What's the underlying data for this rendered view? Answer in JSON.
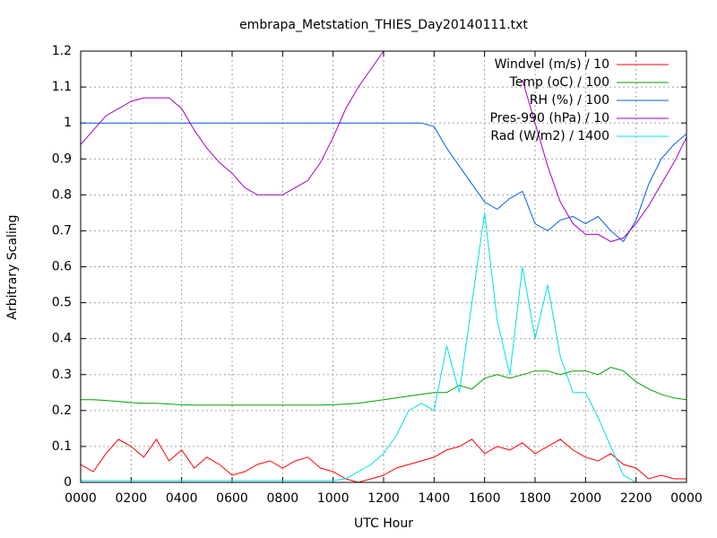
{
  "chart_data": {
    "type": "line",
    "title": "embrapa_Metstation_THIES_Day20140111.txt",
    "x_label": "UTC Hour",
    "y_label": "Arbitrary Scaling",
    "xlim": [
      0,
      24
    ],
    "ylim": [
      0,
      1.2
    ],
    "xticks": [
      {
        "value": 0,
        "label": "0000"
      },
      {
        "value": 2,
        "label": "0200"
      },
      {
        "value": 4,
        "label": "0400"
      },
      {
        "value": 6,
        "label": "0600"
      },
      {
        "value": 8,
        "label": "0800"
      },
      {
        "value": 10,
        "label": "1000"
      },
      {
        "value": 12,
        "label": "1200"
      },
      {
        "value": 14,
        "label": "1400"
      },
      {
        "value": 16,
        "label": "1600"
      },
      {
        "value": 18,
        "label": "1800"
      },
      {
        "value": 20,
        "label": "2000"
      },
      {
        "value": 22,
        "label": "2200"
      },
      {
        "value": 24,
        "label": "0000"
      }
    ],
    "yticks": [
      {
        "value": 0,
        "label": "0"
      },
      0.1,
      0.2,
      0.3,
      0.4,
      0.5,
      0.6,
      0.7,
      0.8,
      0.9,
      {
        "value": 1,
        "label": "1"
      },
      1.1,
      1.2
    ],
    "grid": true,
    "legend": "top-right",
    "x": [
      0,
      0.5,
      1,
      1.5,
      2,
      2.5,
      3,
      3.5,
      4,
      4.5,
      5,
      5.5,
      6,
      6.5,
      7,
      7.5,
      8,
      8.5,
      9,
      9.5,
      10,
      10.5,
      11,
      11.5,
      12,
      12.5,
      13,
      13.5,
      14,
      14.5,
      15,
      15.5,
      16,
      16.5,
      17,
      17.5,
      18,
      18.5,
      19,
      19.5,
      20,
      20.5,
      21,
      21.5,
      22,
      22.5,
      23,
      23.5,
      24
    ],
    "series": [
      {
        "name": "Windvel (m/s) / 10",
        "color": "#ff0000",
        "values": [
          0.05,
          0.03,
          0.08,
          0.12,
          0.1,
          0.07,
          0.12,
          0.06,
          0.09,
          0.04,
          0.07,
          0.05,
          0.02,
          0.03,
          0.05,
          0.06,
          0.04,
          0.06,
          0.07,
          0.04,
          0.03,
          0.01,
          0,
          0.01,
          0.02,
          0.04,
          0.05,
          0.06,
          0.07,
          0.09,
          0.1,
          0.12,
          0.08,
          0.1,
          0.09,
          0.11,
          0.08,
          0.1,
          0.12,
          0.09,
          0.07,
          0.06,
          0.08,
          0.05,
          0.04,
          0.01,
          0.02,
          0.01,
          0.01
        ]
      },
      {
        "name": "Temp (oC) / 100",
        "color": "#00a000",
        "values": [
          0.23,
          0.23,
          0.228,
          0.225,
          0.222,
          0.22,
          0.22,
          0.218,
          0.216,
          0.215,
          0.215,
          0.215,
          0.215,
          0.215,
          0.215,
          0.215,
          0.215,
          0.215,
          0.215,
          0.215,
          0.216,
          0.218,
          0.22,
          0.225,
          0.23,
          0.235,
          0.24,
          0.245,
          0.25,
          0.25,
          0.27,
          0.26,
          0.29,
          0.3,
          0.29,
          0.3,
          0.31,
          0.31,
          0.3,
          0.31,
          0.31,
          0.3,
          0.32,
          0.31,
          0.28,
          0.26,
          0.245,
          0.235,
          0.23
        ]
      },
      {
        "name": "RH (%) / 100",
        "color": "#0060e0",
        "values": [
          1,
          1,
          1,
          1,
          1,
          1,
          1,
          1,
          1,
          1,
          1,
          1,
          1,
          1,
          1,
          1,
          1,
          1,
          1,
          1,
          1,
          1,
          1,
          1,
          1,
          1,
          1,
          1,
          0.99,
          0.93,
          0.88,
          0.83,
          0.78,
          0.76,
          0.79,
          0.81,
          0.72,
          0.7,
          0.73,
          0.74,
          0.72,
          0.74,
          0.7,
          0.67,
          0.73,
          0.83,
          0.9,
          0.94,
          0.97
        ]
      },
      {
        "name": "Pres-990 (hPa) / 10",
        "color": "#a000c0",
        "values": [
          0.94,
          0.98,
          1.02,
          1.04,
          1.06,
          1.07,
          1.07,
          1.07,
          1.04,
          0.98,
          0.93,
          0.89,
          0.86,
          0.82,
          0.8,
          0.8,
          0.8,
          0.82,
          0.84,
          0.89,
          0.96,
          1.04,
          1.1,
          1.15,
          1.2,
          null,
          null,
          null,
          null,
          null,
          null,
          null,
          null,
          null,
          null,
          1.12,
          1,
          0.88,
          0.78,
          0.72,
          0.69,
          0.69,
          0.67,
          0.68,
          0.72,
          0.77,
          0.83,
          0.89,
          0.96
        ]
      },
      {
        "name": "Rad (W/m2) / 1400",
        "color": "#00e0e0",
        "values": [
          0.005,
          0.005,
          0.005,
          0.005,
          0.005,
          0.005,
          0.005,
          0.005,
          0.005,
          0.005,
          0.005,
          0.005,
          0.005,
          0.005,
          0.005,
          0.005,
          0.005,
          0.005,
          0.005,
          0.005,
          0.005,
          0.01,
          0.03,
          0.05,
          0.08,
          0.13,
          0.2,
          0.22,
          0.2,
          0.38,
          0.25,
          0.5,
          0.75,
          0.45,
          0.3,
          0.6,
          0.4,
          0.55,
          0.35,
          0.25,
          0.25,
          0.18,
          0.1,
          0.02,
          0,
          0,
          0,
          0,
          0
        ]
      }
    ]
  }
}
